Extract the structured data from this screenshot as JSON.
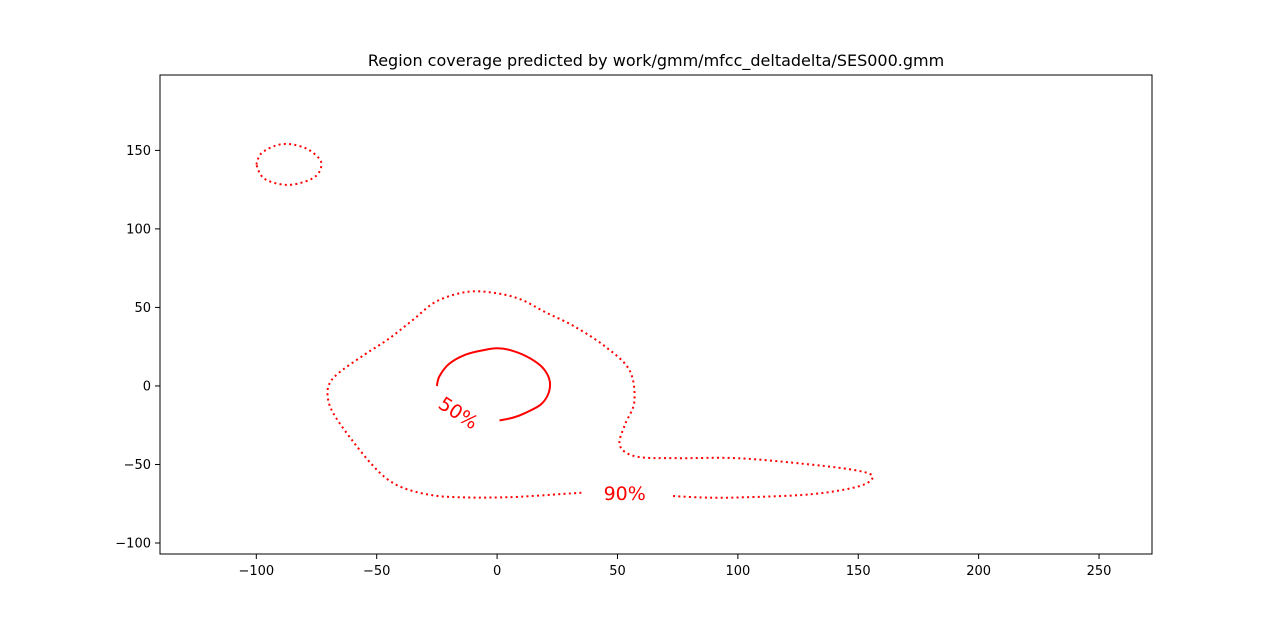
{
  "chart_data": {
    "type": "contour",
    "title": "Region coverage predicted by work/gmm/mfcc_deltadelta/SES000.gmm",
    "xlabel": "",
    "ylabel": "",
    "xlim": [
      -140,
      272
    ],
    "ylim": [
      -107,
      198
    ],
    "xticks": [
      -100,
      -50,
      0,
      50,
      100,
      150,
      200,
      250
    ],
    "yticks": [
      -100,
      -50,
      0,
      50,
      100,
      150
    ],
    "xtick_labels": [
      "−100",
      "−50",
      "0",
      "50",
      "100",
      "150",
      "200",
      "250"
    ],
    "ytick_labels": [
      "−100",
      "−50",
      "0",
      "50",
      "100",
      "150"
    ],
    "grid": false,
    "color": "#ff0000",
    "contours": [
      {
        "level_label": "90%",
        "style": "dotted",
        "paths": [
          [
            [
              -100,
              141
            ],
            [
              -98,
              148
            ],
            [
              -92,
              153
            ],
            [
              -86,
              154
            ],
            [
              -79,
              151
            ],
            [
              -74,
              145
            ],
            [
              -73,
              140
            ],
            [
              -75,
              134
            ],
            [
              -80,
              130
            ],
            [
              -87,
              128
            ],
            [
              -94,
              130
            ],
            [
              -98,
              134
            ],
            [
              -100,
              141
            ]
          ],
          [
            [
              35,
              -68
            ],
            [
              25,
              -69
            ],
            [
              10,
              -70.5
            ],
            [
              0,
              -71
            ],
            [
              -12,
              -71
            ],
            [
              -25,
              -70
            ],
            [
              -37,
              -66
            ],
            [
              -45,
              -60
            ],
            [
              -52,
              -50
            ],
            [
              -60,
              -35
            ],
            [
              -67,
              -20
            ],
            [
              -70,
              -10
            ],
            [
              -70,
              0
            ],
            [
              -66,
              8
            ],
            [
              -55,
              20
            ],
            [
              -45,
              30
            ],
            [
              -35,
              42
            ],
            [
              -25,
              54
            ],
            [
              -12,
              60
            ],
            [
              0,
              59
            ],
            [
              10,
              55
            ],
            [
              20,
              47
            ],
            [
              32,
              38
            ],
            [
              45,
              25
            ],
            [
              55,
              10
            ],
            [
              57,
              -10
            ],
            [
              53,
              -25
            ],
            [
              51,
              -38
            ],
            [
              58,
              -45
            ],
            [
              75,
              -46
            ],
            [
              100,
              -46
            ],
            [
              130,
              -50
            ],
            [
              150,
              -54
            ],
            [
              156,
              -58
            ],
            [
              150,
              -64
            ],
            [
              130,
              -69
            ],
            [
              100,
              -71
            ],
            [
              85,
              -71
            ],
            [
              72,
              -70
            ]
          ]
        ],
        "label_at": [
          53,
          -68
        ],
        "label_rotation": 0
      },
      {
        "level_label": "50%",
        "style": "solid",
        "paths": [
          [
            [
              -25,
              0
            ],
            [
              -24,
              6
            ],
            [
              -20,
              14
            ],
            [
              -13,
              20
            ],
            [
              -5,
              23
            ],
            [
              0,
              24
            ],
            [
              5,
              23
            ],
            [
              12,
              19
            ],
            [
              18,
              13
            ],
            [
              21,
              7
            ],
            [
              22,
              1
            ],
            [
              21,
              -6
            ],
            [
              18,
              -12
            ],
            [
              12,
              -17
            ],
            [
              7,
              -20
            ],
            [
              1,
              -22
            ]
          ]
        ],
        "label_at": [
          -16,
          -17
        ],
        "label_rotation": 33
      }
    ]
  }
}
